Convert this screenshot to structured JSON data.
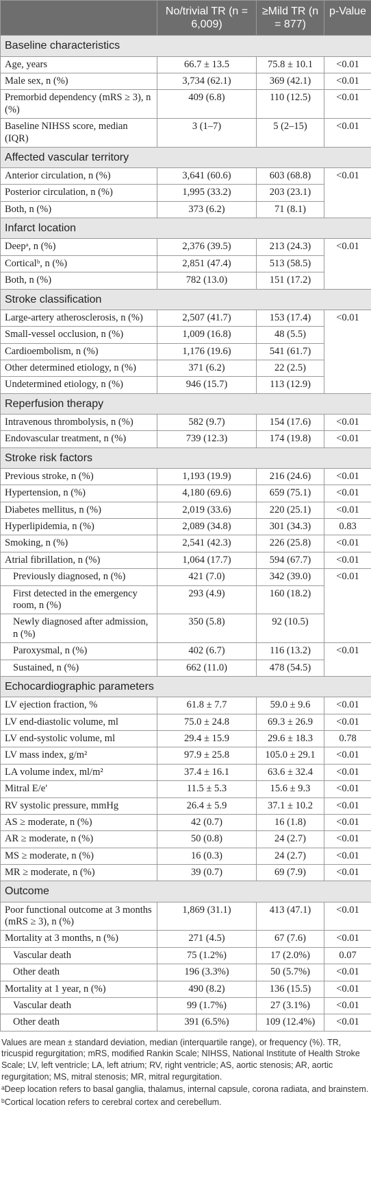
{
  "table": {
    "header": [
      "No/trivial TR (n = 6,009)",
      "≥Mild TR (n = 877)",
      "p-Value"
    ],
    "sections": [
      {
        "title": "Baseline characteristics",
        "rows": [
          [
            "Age, years",
            "66.7 ± 13.5",
            "75.8 ± 10.1",
            "<0.01"
          ],
          [
            "Male sex, n (%)",
            "3,734 (62.1)",
            "369 (42.1)",
            "<0.01"
          ],
          [
            "Premorbid dependency (mRS ≥ 3), n (%)",
            "409 (6.8)",
            "110 (12.5)",
            "<0.01"
          ],
          [
            "Baseline NIHSS score, median (IQR)",
            "3 (1–7)",
            "5 (2–15)",
            "<0.01"
          ]
        ]
      },
      {
        "title": "Affected vascular territory",
        "rows": [
          [
            "Anterior circulation, n (%)",
            "3,641 (60.6)",
            "603 (68.8)",
            "<0.01"
          ],
          [
            "Posterior circulation, n (%)",
            "1,995 (33.2)",
            "203 (23.1)"
          ],
          [
            "Both, n (%)",
            "373 (6.2)",
            "71 (8.1)"
          ]
        ]
      },
      {
        "title": "Infarct location",
        "rows": [
          [
            "Deepᵃ, n (%)",
            "2,376 (39.5)",
            "213 (24.3)",
            "<0.01"
          ],
          [
            "Corticalᵇ, n (%)",
            "2,851 (47.4)",
            "513 (58.5)"
          ],
          [
            "Both, n (%)",
            "782 (13.0)",
            "151 (17.2)"
          ]
        ]
      },
      {
        "title": "Stroke classification",
        "rows": [
          [
            "Large-artery atherosclerosis, n (%)",
            "2,507 (41.7)",
            "153 (17.4)",
            "<0.01"
          ],
          [
            "Small-vessel occlusion, n (%)",
            "1,009 (16.8)",
            "48 (5.5)"
          ],
          [
            "Cardioembolism, n (%)",
            "1,176 (19.6)",
            "541 (61.7)"
          ],
          [
            "Other determined etiology, n (%)",
            "371 (6.2)",
            "22 (2.5)"
          ],
          [
            "Undetermined etiology, n (%)",
            "946 (15.7)",
            "113 (12.9)"
          ]
        ]
      },
      {
        "title": "Reperfusion therapy",
        "rows": [
          [
            "Intravenous thrombolysis, n (%)",
            "582 (9.7)",
            "154 (17.6)",
            "<0.01"
          ],
          [
            "Endovascular treatment, n (%)",
            "739 (12.3)",
            "174 (19.8)",
            "<0.01"
          ]
        ]
      },
      {
        "title": "Stroke risk factors",
        "rows": [
          [
            "Previous stroke, n (%)",
            "1,193 (19.9)",
            "216 (24.6)",
            "<0.01"
          ],
          [
            "Hypertension, n (%)",
            "4,180 (69.6)",
            "659 (75.1)",
            "<0.01"
          ],
          [
            "Diabetes mellitus, n (%)",
            "2,019 (33.6)",
            "220 (25.1)",
            "<0.01"
          ],
          [
            "Hyperlipidemia, n (%)",
            "2,089 (34.8)",
            "301 (34.3)",
            "0.83"
          ],
          [
            "Smoking, n (%)",
            "2,541 (42.3)",
            "226 (25.8)",
            "<0.01"
          ],
          [
            "Atrial fibrillation, n (%)",
            "1,064 (17.7)",
            "594 (67.7)",
            "<0.01"
          ],
          [
            "Previously diagnosed, n (%)",
            "421 (7.0)",
            "342 (39.0)",
            "<0.01"
          ],
          [
            "First detected in the emergency room, n (%)",
            "293 (4.9)",
            "160 (18.2)"
          ],
          [
            "Newly diagnosed after admission, n (%)",
            "350 (5.8)",
            "92 (10.5)"
          ],
          [
            "Paroxysmal, n (%)",
            "402 (6.7)",
            "116 (13.2)",
            "<0.01"
          ],
          [
            "Sustained, n (%)",
            "662 (11.0)",
            "478 (54.5)"
          ]
        ]
      },
      {
        "title": "Echocardiographic parameters",
        "rows": [
          [
            "LV ejection fraction, %",
            "61.8 ± 7.7",
            "59.0 ± 9.6",
            "<0.01"
          ],
          [
            "LV end-diastolic volume, ml",
            "75.0 ± 24.8",
            "69.3 ± 26.9",
            "<0.01"
          ],
          [
            "LV end-systolic volume, ml",
            "29.4 ± 15.9",
            "29.6 ± 18.3",
            "0.78"
          ],
          [
            "LV mass index, g/m²",
            "97.9 ± 25.8",
            "105.0 ± 29.1",
            "<0.01"
          ],
          [
            "LA volume index, ml/m²",
            "37.4 ± 16.1",
            "63.6 ± 32.4",
            "<0.01"
          ],
          [
            "Mitral E/e′",
            "11.5 ± 5.3",
            "15.6 ± 9.3",
            "<0.01"
          ],
          [
            "RV systolic pressure, mmHg",
            "26.4 ± 5.9",
            "37.1 ± 10.2",
            "<0.01"
          ],
          [
            "AS ≥ moderate, n (%)",
            "42 (0.7)",
            "16 (1.8)",
            "<0.01"
          ],
          [
            "AR ≥ moderate, n (%)",
            "50 (0.8)",
            "24 (2.7)",
            "<0.01"
          ],
          [
            "MS ≥ moderate, n (%)",
            "16 (0.3)",
            "24 (2.7)",
            "<0.01"
          ],
          [
            "MR ≥ moderate, n (%)",
            "39 (0.7)",
            "69 (7.9)",
            "<0.01"
          ]
        ]
      },
      {
        "title": "Outcome",
        "rows": [
          [
            "Poor functional outcome at 3 months (mRS ≥ 3), n (%)",
            "1,869 (31.1)",
            "413 (47.1)",
            "<0.01"
          ],
          [
            "Mortality at 3 months, n (%)",
            "271 (4.5)",
            "67 (7.6)",
            "<0.01"
          ],
          [
            "Vascular death",
            "75 (1.2%)",
            "17 (2.0%)",
            "0.07"
          ],
          [
            "Other death",
            "196 (3.3%)",
            "50 (5.7%)",
            "<0.01"
          ],
          [
            "Mortality at 1 year, n (%)",
            "490 (8.2)",
            "136 (15.5)",
            "<0.01"
          ],
          [
            "Vascular death",
            "99 (1.7%)",
            "27 (3.1%)",
            "<0.01"
          ],
          [
            "Other death",
            "391 (6.5%)",
            "109 (12.4%)",
            "<0.01"
          ]
        ]
      }
    ],
    "notes": [
      "Values are mean ± standard deviation, median (interquartile range), or frequency (%). TR, tricuspid regurgitation; mRS, modified Rankin Scale; NIHSS, National Institute of Health Stroke Scale; LV, left ventricle; LA, left atrium; RV, right ventricle; AS, aortic stenosis; AR, aortic regurgitation; MS, mitral stenosis; MR, mitral regurgitation.",
      "ᵃDeep location refers to basal ganglia, thalamus, internal capsule, corona radiata, and brainstem.",
      "ᵇCortical location refers to cerebral cortex and cerebellum."
    ]
  }
}
